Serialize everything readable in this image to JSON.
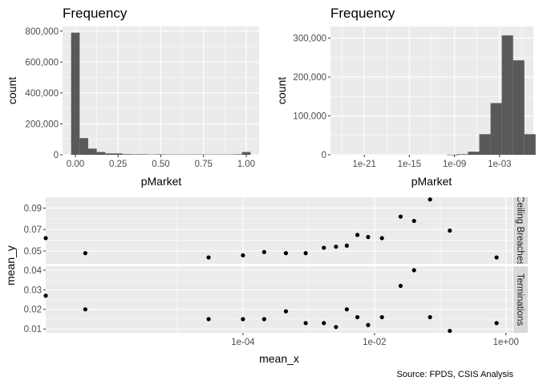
{
  "chart_data": [
    {
      "type": "bar",
      "title": "Frequency",
      "xlabel": "pMarket",
      "ylabel": "count",
      "xlim": [
        -0.075,
        1.075
      ],
      "ylim": [
        0,
        830000
      ],
      "x_ticks": [
        0,
        0.25,
        0.5,
        0.75,
        1
      ],
      "x_tick_labels": [
        "0.00",
        "0.25",
        "0.50",
        "0.75",
        "1.00"
      ],
      "y_ticks": [
        0,
        200000,
        400000,
        600000,
        800000
      ],
      "y_tick_labels": [
        "0",
        "200,000",
        "400,000",
        "600,000",
        "800,000"
      ],
      "bin_width": 0.05,
      "bins": [
        {
          "x": 0.0,
          "count": 790000
        },
        {
          "x": 0.05,
          "count": 108000
        },
        {
          "x": 0.1,
          "count": 40000
        },
        {
          "x": 0.15,
          "count": 18000
        },
        {
          "x": 0.2,
          "count": 9000
        },
        {
          "x": 0.25,
          "count": 9000
        },
        {
          "x": 0.3,
          "count": 4000
        },
        {
          "x": 0.35,
          "count": 3000
        },
        {
          "x": 0.4,
          "count": 3000
        },
        {
          "x": 0.45,
          "count": 2000
        },
        {
          "x": 0.5,
          "count": 3000
        },
        {
          "x": 0.55,
          "count": 2000
        },
        {
          "x": 0.6,
          "count": 2000
        },
        {
          "x": 0.65,
          "count": 2000
        },
        {
          "x": 0.7,
          "count": 2000
        },
        {
          "x": 0.75,
          "count": 2000
        },
        {
          "x": 0.8,
          "count": 2000
        },
        {
          "x": 0.85,
          "count": 2000
        },
        {
          "x": 0.9,
          "count": 2000
        },
        {
          "x": 0.95,
          "count": 3000
        },
        {
          "x": 1.0,
          "count": 18000
        }
      ],
      "grid": true
    },
    {
      "type": "bar",
      "title": "Frequency",
      "xlabel": "pMarket",
      "ylabel": "count",
      "x_scale": "log10",
      "xlim_log10": [
        -25.5,
        1.5
      ],
      "ylim": [
        0,
        330000
      ],
      "x_ticks_log10": [
        -21,
        -15,
        -9,
        -3
      ],
      "x_tick_labels": [
        "1e-21",
        "1e-15",
        "1e-09",
        "1e-03"
      ],
      "y_ticks": [
        0,
        100000,
        200000,
        300000
      ],
      "y_tick_labels": [
        "0",
        "100,000",
        "200,000",
        "300,000"
      ],
      "bins": [
        {
          "log10_start": -10.0,
          "count": 300
        },
        {
          "log10_start": -8.7,
          "count": 1500
        },
        {
          "log10_start": -7.2,
          "count": 8000
        },
        {
          "log10_start": -5.7,
          "count": 53000
        },
        {
          "log10_start": -4.2,
          "count": 133000
        },
        {
          "log10_start": -2.7,
          "count": 307000
        },
        {
          "log10_start": -1.2,
          "count": 243000
        },
        {
          "log10_start": 0.3,
          "count": 53000
        }
      ],
      "bin_width_log10": 1.5,
      "grid": true
    },
    {
      "type": "scatter",
      "xlabel": "mean_x",
      "ylabel": "mean_y",
      "x_scale": "log10",
      "xlim_log10": [
        -7.0,
        0.1
      ],
      "x_ticks_log10": [
        -4,
        -2,
        0
      ],
      "x_tick_labels": [
        "1e-04",
        "1e-02",
        "1e+00"
      ],
      "panels": [
        {
          "strip": "Ceiling Breaches",
          "ylim": [
            0.038,
            0.1
          ],
          "y_ticks": [
            0.05,
            0.07,
            0.09
          ],
          "y_tick_labels": [
            "0.05",
            "0.07",
            "0.09"
          ],
          "points": [
            {
              "x": 1e-07,
              "y": 0.062
            },
            {
              "x": 4e-07,
              "y": 0.048
            },
            {
              "x": 3e-05,
              "y": 0.044
            },
            {
              "x": 0.0001,
              "y": 0.046
            },
            {
              "x": 0.00021,
              "y": 0.049
            },
            {
              "x": 0.00045,
              "y": 0.048
            },
            {
              "x": 0.0009,
              "y": 0.048
            },
            {
              "x": 0.0017,
              "y": 0.053
            },
            {
              "x": 0.0026,
              "y": 0.054
            },
            {
              "x": 0.0038,
              "y": 0.055
            },
            {
              "x": 0.0055,
              "y": 0.065
            },
            {
              "x": 0.008,
              "y": 0.063
            },
            {
              "x": 0.013,
              "y": 0.062
            },
            {
              "x": 0.025,
              "y": 0.082
            },
            {
              "x": 0.04,
              "y": 0.078
            },
            {
              "x": 0.07,
              "y": 0.098
            },
            {
              "x": 0.14,
              "y": 0.069
            },
            {
              "x": 0.72,
              "y": 0.044
            }
          ]
        },
        {
          "strip": "Terminations",
          "ylim": [
            0.008,
            0.042
          ],
          "y_ticks": [
            0.01,
            0.02,
            0.03,
            0.04
          ],
          "y_tick_labels": [
            "0.01",
            "0.02",
            "0.03",
            "0.04"
          ],
          "points": [
            {
              "x": 1e-07,
              "y": 0.027
            },
            {
              "x": 4e-07,
              "y": 0.02
            },
            {
              "x": 3e-05,
              "y": 0.015
            },
            {
              "x": 0.0001,
              "y": 0.015
            },
            {
              "x": 0.00021,
              "y": 0.015
            },
            {
              "x": 0.00045,
              "y": 0.019
            },
            {
              "x": 0.0009,
              "y": 0.013
            },
            {
              "x": 0.0017,
              "y": 0.013
            },
            {
              "x": 0.0026,
              "y": 0.011
            },
            {
              "x": 0.0038,
              "y": 0.02
            },
            {
              "x": 0.0055,
              "y": 0.016
            },
            {
              "x": 0.008,
              "y": 0.012
            },
            {
              "x": 0.013,
              "y": 0.016
            },
            {
              "x": 0.025,
              "y": 0.032
            },
            {
              "x": 0.04,
              "y": 0.04
            },
            {
              "x": 0.07,
              "y": 0.016
            },
            {
              "x": 0.14,
              "y": 0.009
            },
            {
              "x": 0.72,
              "y": 0.013
            }
          ]
        }
      ],
      "grid": true
    }
  ],
  "caption": "Source: FPDS, CSIS Analysis"
}
